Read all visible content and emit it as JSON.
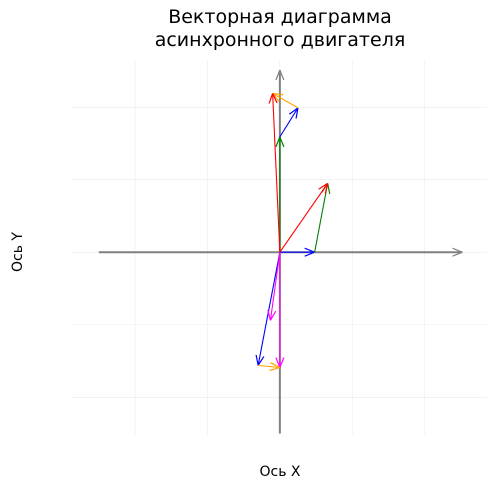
{
  "chart_data": {
    "type": "vector",
    "title": "Векторная диаграмма\nасинхронного двигателя",
    "x_label": "Ось X",
    "y_label": "Ось Y",
    "xlim": [
      -2.87,
      2.86
    ],
    "ylim": [
      -2.52,
      2.65
    ],
    "xticks": [
      -2,
      -1,
      0,
      1,
      2
    ],
    "yticks": [
      -2,
      -1,
      0,
      1,
      2
    ],
    "grid": true,
    "vectors": [
      {
        "x0": -2.5,
        "y0": 0,
        "x1": 2.52,
        "y1": 0,
        "color": "#808080"
      },
      {
        "x0": 0,
        "y0": -2.5,
        "x1": 0,
        "y1": 2.51,
        "color": "#808080"
      },
      {
        "x0": 0,
        "y0": 0,
        "x1": 0.48,
        "y1": 0,
        "color": "#0000ff"
      },
      {
        "x0": 0.48,
        "y0": 0,
        "x1": 0.66,
        "y1": 0.95,
        "color": "#008000"
      },
      {
        "x0": 0,
        "y0": 0,
        "x1": 0.66,
        "y1": 0.95,
        "color": "#ff0000"
      },
      {
        "x0": 0,
        "y0": 0,
        "x1": 0,
        "y1": 1.59,
        "color": "#008000"
      },
      {
        "x0": 0,
        "y0": 1.59,
        "x1": 0.25,
        "y1": 1.99,
        "color": "#0000ff"
      },
      {
        "x0": 0.25,
        "y0": 1.99,
        "x1": -0.1,
        "y1": 2.19,
        "color": "#ffa500"
      },
      {
        "x0": 0,
        "y0": 0,
        "x1": -0.1,
        "y1": 2.19,
        "color": "#ff0000"
      },
      {
        "x0": 0,
        "y0": 0,
        "x1": -0.3,
        "y1": -1.56,
        "color": "#0000ff"
      },
      {
        "x0": 0,
        "y0": 0,
        "x1": -0.13,
        "y1": -0.94,
        "color": "#ff00ff"
      },
      {
        "x0": 0,
        "y0": 0,
        "x1": 0,
        "y1": -1.59,
        "color": "#ff00ff"
      },
      {
        "x0": -0.3,
        "y0": -1.56,
        "x1": 0,
        "y1": -1.59,
        "color": "#ffa500"
      }
    ]
  }
}
